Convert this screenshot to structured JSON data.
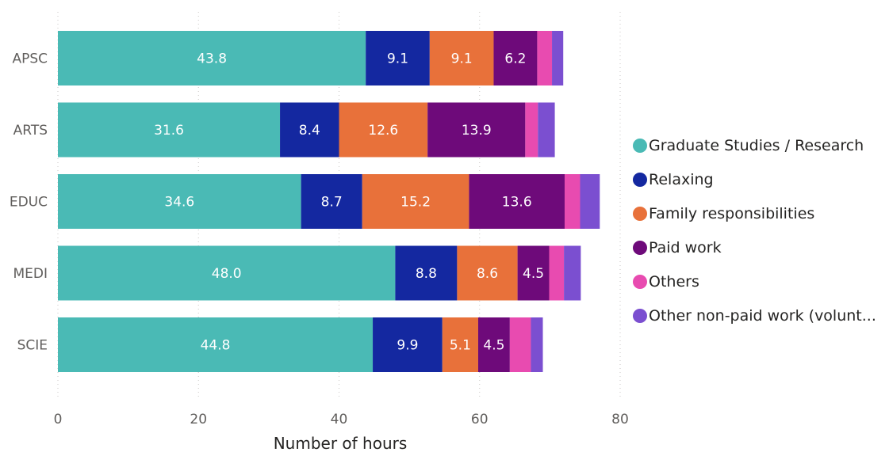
{
  "chart_data": {
    "type": "bar",
    "orientation": "horizontal",
    "stacked": true,
    "categories": [
      "APSC",
      "ARTS",
      "EDUC",
      "MEDI",
      "SCIE"
    ],
    "series": [
      {
        "name": "Graduate Studies / Research",
        "color": "#4ABAB5",
        "values": [
          43.8,
          31.6,
          34.6,
          48.0,
          44.8
        ],
        "labels": [
          "43.8",
          "31.6",
          "34.6",
          "48.0",
          "44.8"
        ]
      },
      {
        "name": "Relaxing",
        "color": "#1428A0",
        "values": [
          9.1,
          8.4,
          8.7,
          8.8,
          9.9
        ],
        "labels": [
          "9.1",
          "8.4",
          "8.7",
          "8.8",
          "9.9"
        ]
      },
      {
        "name": "Family responsibilities",
        "color": "#E8713A",
        "values": [
          9.1,
          12.6,
          15.2,
          8.6,
          5.1
        ],
        "labels": [
          "9.1",
          "12.6",
          "15.2",
          "8.6",
          "5.1"
        ]
      },
      {
        "name": "Paid work",
        "color": "#6E0A7A",
        "values": [
          6.2,
          13.9,
          13.6,
          4.5,
          4.5
        ],
        "labels": [
          "6.2",
          "13.9",
          "13.6",
          "4.5",
          "4.5"
        ]
      },
      {
        "name": "Others",
        "color": "#E84BB0",
        "values": [
          2.1,
          1.8,
          2.2,
          2.1,
          3.0
        ],
        "labels": [
          "",
          "",
          "",
          "",
          ""
        ]
      },
      {
        "name": "Other non-paid work (volunt...",
        "color": "#7B4FD0",
        "values": [
          1.6,
          2.4,
          2.8,
          2.4,
          1.7
        ],
        "labels": [
          "",
          "",
          "",
          "",
          ""
        ]
      }
    ],
    "x_ticks": [
      "0",
      "20",
      "40",
      "60",
      "80"
    ],
    "xlim": [
      0,
      80
    ],
    "xlabel": "Number of hours",
    "ylabel": "",
    "title": "",
    "grid": "vertical dotted",
    "legend_position": "right"
  }
}
